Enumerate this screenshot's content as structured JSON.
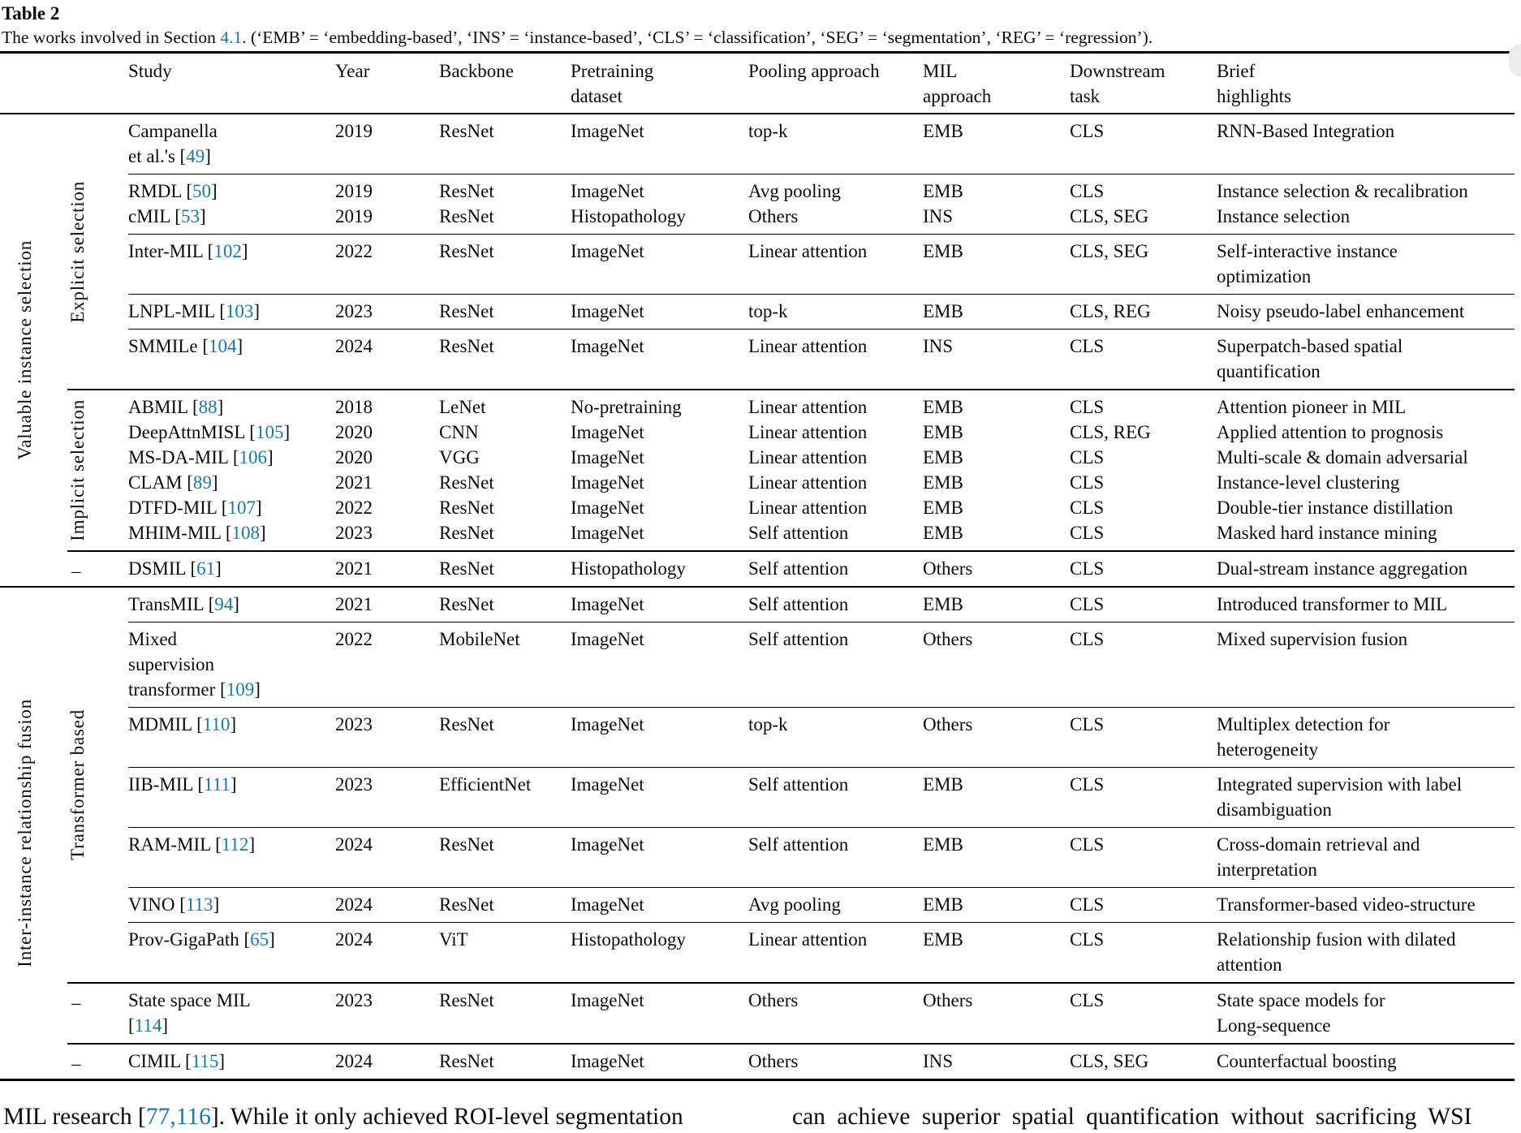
{
  "title": "Table 2",
  "caption": {
    "prefix": "The works involved in Section ",
    "link": "4.1",
    "suffix": ". (‘EMB’ = ‘embedding-based’, ‘INS’ = ‘instance-based’, ‘CLS’ = ‘classification’, ‘SEG’ = ‘segmentation’, ‘REG’ = ‘regression’)."
  },
  "accent_color": "#1679a8",
  "columns": [
    {
      "id": "study",
      "lines": [
        "Study"
      ]
    },
    {
      "id": "year",
      "lines": [
        "Year"
      ]
    },
    {
      "id": "backbone",
      "lines": [
        "Backbone"
      ]
    },
    {
      "id": "pretraining",
      "lines": [
        "Pretraining",
        "dataset"
      ]
    },
    {
      "id": "pooling",
      "lines": [
        "Pooling approach"
      ]
    },
    {
      "id": "mil",
      "lines": [
        "MIL",
        "approach"
      ]
    },
    {
      "id": "task",
      "lines": [
        "Downstream",
        "task"
      ]
    },
    {
      "id": "highlights",
      "lines": [
        "Brief",
        "highlights"
      ]
    }
  ],
  "groups": [
    {
      "label": "Valuable instance selection",
      "subgroups": [
        {
          "label": "Explicit selection",
          "rotated": true,
          "bands": [
            [
              {
                "study": [
                  "Campanella",
                  "et al.'s [49]"
                ],
                "year": "2019",
                "backbone": "ResNet",
                "pretraining": "ImageNet",
                "pooling": "top-k",
                "mil": "EMB",
                "task": "CLS",
                "highlights": [
                  "RNN-Based Integration"
                ]
              }
            ],
            [
              {
                "study": [
                  "RMDL [50]"
                ],
                "year": "2019",
                "backbone": "ResNet",
                "pretraining": "ImageNet",
                "pooling": "Avg pooling",
                "mil": "EMB",
                "task": "CLS",
                "highlights": [
                  "Instance selection & recalibration"
                ]
              },
              {
                "study": [
                  "cMIL [53]"
                ],
                "year": "2019",
                "backbone": "ResNet",
                "pretraining": "Histopathology",
                "pooling": "Others",
                "mil": "INS",
                "task": "CLS, SEG",
                "highlights": [
                  "Instance selection"
                ]
              }
            ],
            [
              {
                "study": [
                  "Inter-MIL [102]"
                ],
                "year": "2022",
                "backbone": "ResNet",
                "pretraining": "ImageNet",
                "pooling": "Linear attention",
                "mil": "EMB",
                "task": "CLS, SEG",
                "highlights": [
                  "Self-interactive instance",
                  "optimization"
                ]
              }
            ],
            [
              {
                "study": [
                  "LNPL-MIL [103]"
                ],
                "year": "2023",
                "backbone": "ResNet",
                "pretraining": "ImageNet",
                "pooling": "top-k",
                "mil": "EMB",
                "task": "CLS, REG",
                "highlights": [
                  "Noisy pseudo-label enhancement"
                ]
              }
            ],
            [
              {
                "study": [
                  "SMMILe [104]"
                ],
                "year": "2024",
                "backbone": "ResNet",
                "pretraining": "ImageNet",
                "pooling": "Linear attention",
                "mil": "INS",
                "task": "CLS",
                "highlights": [
                  "Superpatch-based spatial",
                  "quantification"
                ]
              }
            ]
          ]
        },
        {
          "label": "Implicit selection",
          "rotated": true,
          "bands": [
            [
              {
                "study": [
                  "ABMIL [88]"
                ],
                "year": "2018",
                "backbone": "LeNet",
                "pretraining": "No-pretraining",
                "pooling": "Linear attention",
                "mil": "EMB",
                "task": "CLS",
                "highlights": [
                  "Attention pioneer in MIL"
                ]
              },
              {
                "study": [
                  "DeepAttnMISL [105]"
                ],
                "year": "2020",
                "backbone": "CNN",
                "pretraining": "ImageNet",
                "pooling": "Linear attention",
                "mil": "EMB",
                "task": "CLS, REG",
                "highlights": [
                  "Applied attention to prognosis"
                ]
              },
              {
                "study": [
                  "MS-DA-MIL [106]"
                ],
                "year": "2020",
                "backbone": "VGG",
                "pretraining": "ImageNet",
                "pooling": "Linear attention",
                "mil": "EMB",
                "task": "CLS",
                "highlights": [
                  "Multi-scale & domain adversarial"
                ]
              },
              {
                "study": [
                  "CLAM [89]"
                ],
                "year": "2021",
                "backbone": "ResNet",
                "pretraining": "ImageNet",
                "pooling": "Linear attention",
                "mil": "EMB",
                "task": "CLS",
                "highlights": [
                  "Instance-level clustering"
                ]
              },
              {
                "study": [
                  "DTFD-MIL [107]"
                ],
                "year": "2022",
                "backbone": "ResNet",
                "pretraining": "ImageNet",
                "pooling": "Linear attention",
                "mil": "EMB",
                "task": "CLS",
                "highlights": [
                  "Double-tier instance distillation"
                ]
              },
              {
                "study": [
                  "MHIM-MIL [108]"
                ],
                "year": "2023",
                "backbone": "ResNet",
                "pretraining": "ImageNet",
                "pooling": "Self attention",
                "mil": "EMB",
                "task": "CLS",
                "highlights": [
                  "Masked hard instance mining"
                ]
              }
            ]
          ]
        },
        {
          "label": "–",
          "rotated": false,
          "bands": [
            [
              {
                "study": [
                  "DSMIL [61]"
                ],
                "year": "2021",
                "backbone": "ResNet",
                "pretraining": "Histopathology",
                "pooling": "Self attention",
                "mil": "Others",
                "task": "CLS",
                "highlights": [
                  "Dual-stream instance aggregation"
                ]
              }
            ]
          ]
        }
      ]
    },
    {
      "label": "Inter-instance relationship fusion",
      "subgroups": [
        {
          "label": "Transformer based",
          "rotated": true,
          "bands": [
            [
              {
                "study": [
                  "TransMIL [94]"
                ],
                "year": "2021",
                "backbone": "ResNet",
                "pretraining": "ImageNet",
                "pooling": "Self attention",
                "mil": "EMB",
                "task": "CLS",
                "highlights": [
                  "Introduced transformer to MIL"
                ]
              }
            ],
            [
              {
                "study": [
                  "Mixed",
                  "supervision",
                  "transformer [109]"
                ],
                "year": "2022",
                "backbone": "MobileNet",
                "pretraining": "ImageNet",
                "pooling": "Self attention",
                "mil": "Others",
                "task": "CLS",
                "highlights": [
                  "Mixed supervision fusion"
                ]
              }
            ],
            [
              {
                "study": [
                  "MDMIL [110]"
                ],
                "year": "2023",
                "backbone": "ResNet",
                "pretraining": "ImageNet",
                "pooling": "top-k",
                "mil": "Others",
                "task": "CLS",
                "highlights": [
                  "Multiplex detection for",
                  "heterogeneity"
                ]
              }
            ],
            [
              {
                "study": [
                  "IIB-MIL [111]"
                ],
                "year": "2023",
                "backbone": "EfficientNet",
                "pretraining": "ImageNet",
                "pooling": "Self attention",
                "mil": "EMB",
                "task": "CLS",
                "highlights": [
                  "Integrated supervision with label",
                  "disambiguation"
                ]
              }
            ],
            [
              {
                "study": [
                  "RAM-MIL [112]"
                ],
                "year": "2024",
                "backbone": "ResNet",
                "pretraining": "ImageNet",
                "pooling": "Self attention",
                "mil": "EMB",
                "task": "CLS",
                "highlights": [
                  "Cross-domain retrieval and",
                  "interpretation"
                ]
              }
            ],
            [
              {
                "study": [
                  "VINO [113]"
                ],
                "year": "2024",
                "backbone": "ResNet",
                "pretraining": "ImageNet",
                "pooling": "Avg pooling",
                "mil": "EMB",
                "task": "CLS",
                "highlights": [
                  "Transformer-based video-structure"
                ]
              }
            ],
            [
              {
                "study": [
                  "Prov-GigaPath [65]"
                ],
                "year": "2024",
                "backbone": "ViT",
                "pretraining": "Histopathology",
                "pooling": "Linear attention",
                "mil": "EMB",
                "task": "CLS",
                "highlights": [
                  "Relationship fusion with dilated",
                  "attention"
                ]
              }
            ]
          ]
        },
        {
          "label": "–",
          "rotated": false,
          "bands": [
            [
              {
                "study": [
                  "State space MIL",
                  "[114]"
                ],
                "year": "2023",
                "backbone": "ResNet",
                "pretraining": "ImageNet",
                "pooling": "Others",
                "mil": "Others",
                "task": "CLS",
                "highlights": [
                  "State space models for",
                  "Long-sequence"
                ]
              }
            ]
          ]
        },
        {
          "label": "–",
          "rotated": false,
          "bands": [
            [
              {
                "study": [
                  "CIMIL [115]"
                ],
                "year": "2024",
                "backbone": "ResNet",
                "pretraining": "ImageNet",
                "pooling": "Others",
                "mil": "INS",
                "task": "CLS, SEG",
                "highlights": [
                  "Counterfactual boosting"
                ]
              }
            ]
          ]
        }
      ]
    }
  ],
  "footer": {
    "left_pre": "MIL research [",
    "left_refs": "77,116",
    "left_post": "]. While it only achieved ROI-level segmentation",
    "right": "can achieve superior spatial quantification without sacrificing WSI"
  }
}
